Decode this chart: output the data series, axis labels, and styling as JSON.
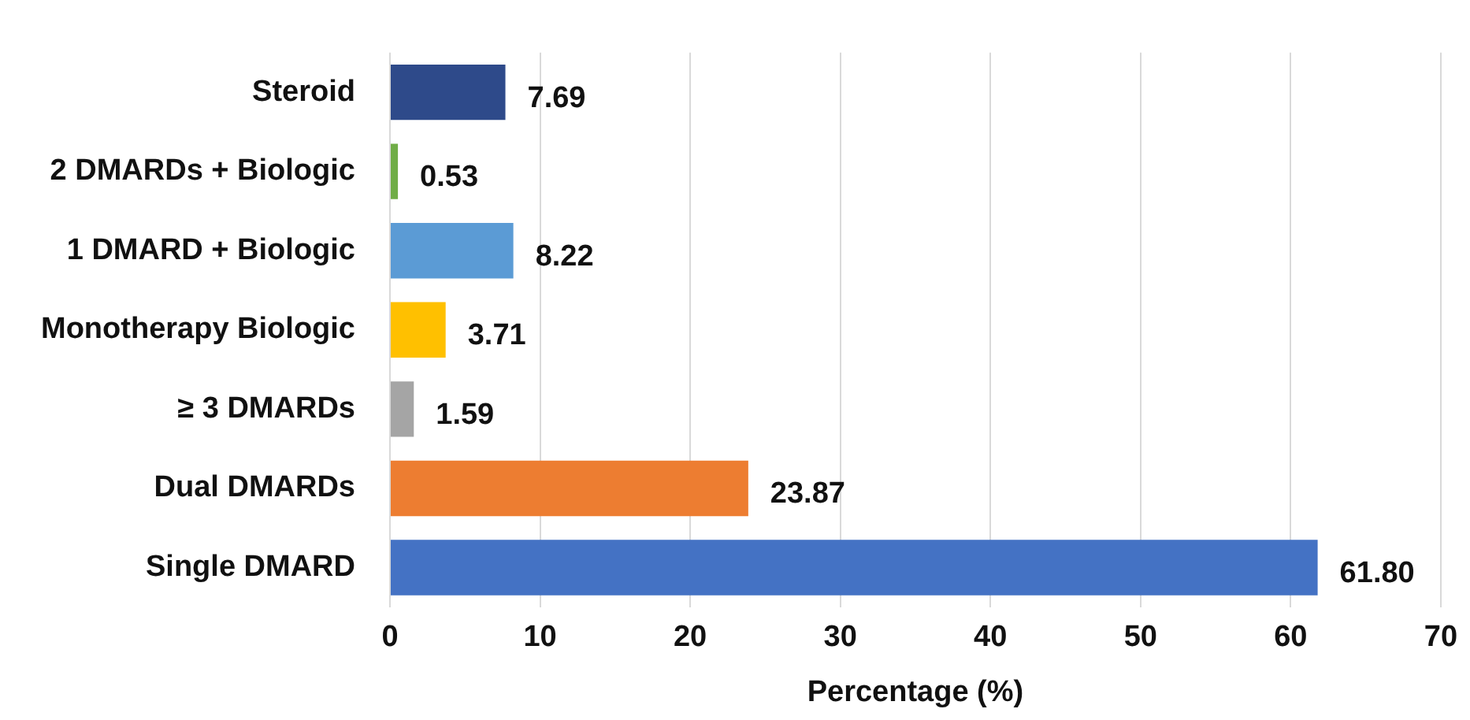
{
  "chart_data": {
    "type": "bar",
    "orientation": "horizontal",
    "xlabel": "Percentage (%)",
    "categories": [
      "Steroid",
      "2 DMARDs + Biologic",
      "1 DMARD + Biologic",
      "Monotherapy Biologic",
      "≥ 3 DMARDs",
      "Dual DMARDs",
      "Single DMARD"
    ],
    "values": [
      7.69,
      0.53,
      8.22,
      3.71,
      1.59,
      23.87,
      61.8
    ],
    "value_labels": [
      "7.69",
      "0.53",
      "8.22",
      "3.71",
      "1.59",
      "23.87",
      "61.80"
    ],
    "colors": [
      "#2e4a8a",
      "#70ad47",
      "#5b9bd5",
      "#ffc000",
      "#a5a5a5",
      "#ed7d31",
      "#4472c4"
    ],
    "xlim": [
      0,
      70
    ],
    "xticks": [
      0,
      10,
      20,
      30,
      40,
      50,
      60,
      70
    ],
    "grid": "x"
  }
}
